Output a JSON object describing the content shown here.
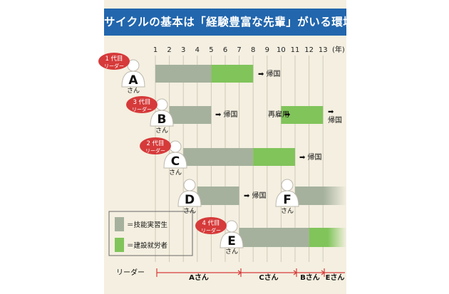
{
  "title": "サイクルの基本は「経験豊富な先輩」がいる環境",
  "axis": {
    "ticks": [
      "1",
      "2",
      "3",
      "4",
      "5",
      "6",
      "7",
      "8",
      "9",
      "10",
      "11",
      "12",
      "13"
    ],
    "unit": "(年)"
  },
  "colors": {
    "trainee": "#a5b19d",
    "worker": "#80c45a",
    "badge": "#d63a3a",
    "title_bg": "#2266ad",
    "panel_bg": "#f4efe0"
  },
  "people": [
    {
      "letter": "A",
      "san": "さん",
      "badge": [
        "1 代目",
        "リーダー"
      ],
      "after": "➡ 帰国"
    },
    {
      "letter": "B",
      "san": "さん",
      "badge": [
        "3 代目",
        "リーダー"
      ],
      "after": "➡ 帰国",
      "rehire": "再雇用",
      "after2": [
        "➡",
        "帰国"
      ]
    },
    {
      "letter": "C",
      "san": "さん",
      "badge": [
        "2 代目",
        "リーダー"
      ],
      "after": "➡ 帰国"
    },
    {
      "letter": "D",
      "san": "さん",
      "after": "➡ 帰国"
    },
    {
      "letter": "F",
      "san": "さん"
    },
    {
      "letter": "E",
      "san": "さん",
      "badge": [
        "4 代目",
        "リーダー"
      ]
    }
  ],
  "timeline": [
    {
      "person": "A",
      "phase": "trainee",
      "start": 1,
      "end": 5
    },
    {
      "person": "A",
      "phase": "worker",
      "start": 5,
      "end": 8
    },
    {
      "person": "B",
      "phase": "trainee",
      "start": 2,
      "end": 5
    },
    {
      "person": "B",
      "phase": "worker",
      "start": 10,
      "end": 13
    },
    {
      "person": "C",
      "phase": "trainee",
      "start": 3,
      "end": 8
    },
    {
      "person": "C",
      "phase": "worker",
      "start": 8,
      "end": 11
    },
    {
      "person": "D",
      "phase": "trainee",
      "start": 4,
      "end": 7
    },
    {
      "person": "F",
      "phase": "trainee",
      "start": 11,
      "end": 14
    },
    {
      "person": "E",
      "phase": "trainee",
      "start": 7,
      "end": 12
    },
    {
      "person": "E",
      "phase": "worker",
      "start": 12,
      "end": 14
    }
  ],
  "legend": {
    "trainee": "＝技能実習生",
    "worker": "＝建設就労者"
  },
  "leader_row": {
    "label": "リーダー",
    "segments": [
      "Aさん",
      "Cさん",
      "Bさん",
      "Eさん"
    ]
  }
}
